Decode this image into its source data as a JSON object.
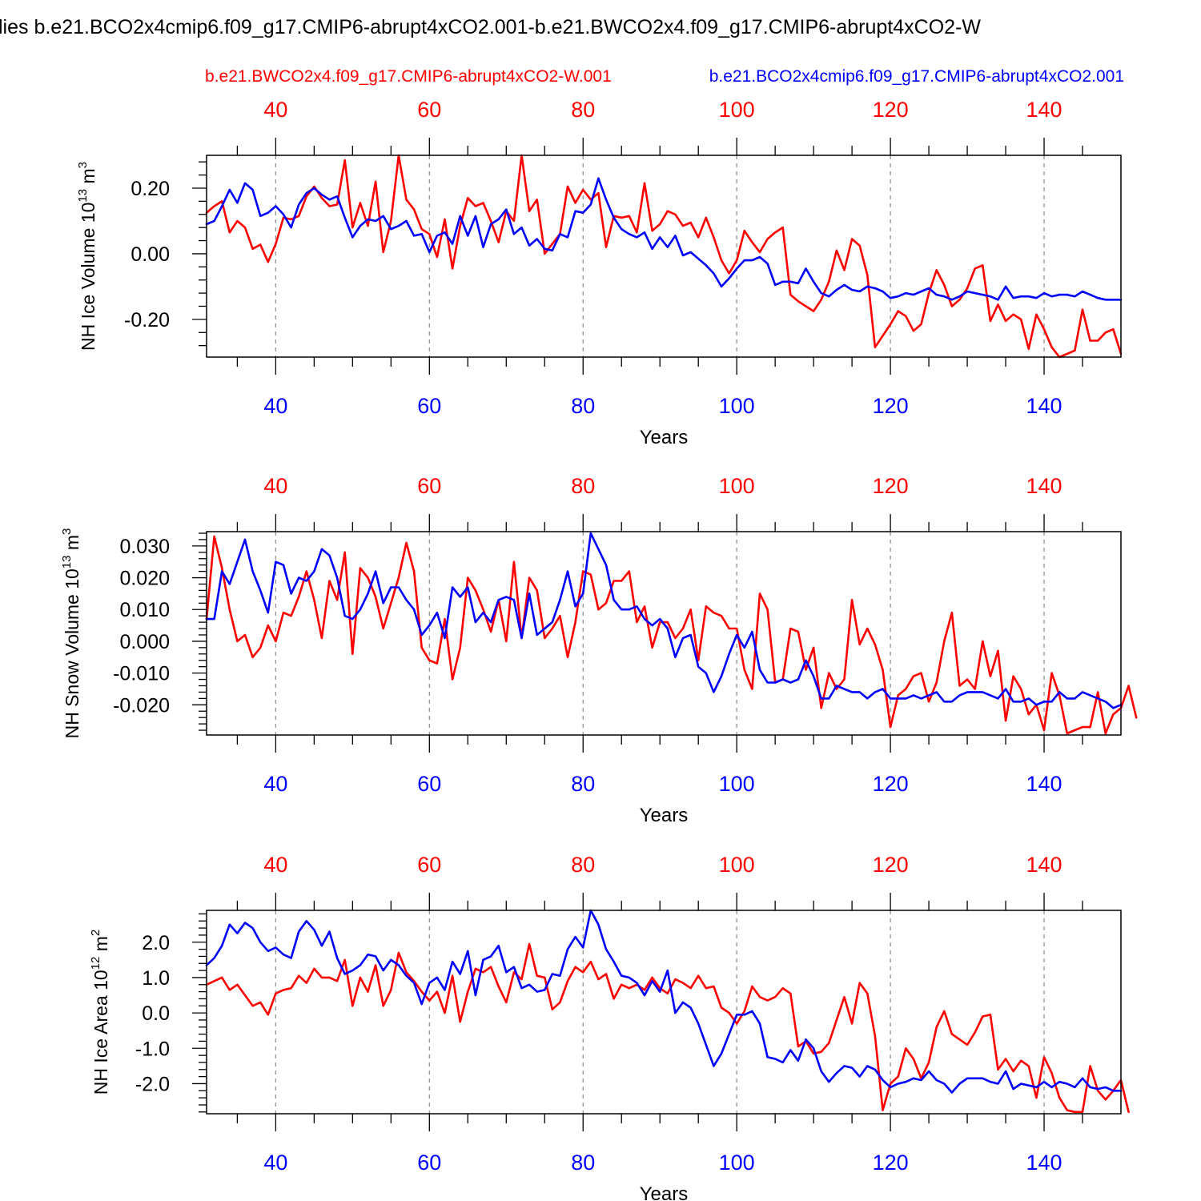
{
  "figure": {
    "title": "lies b.e21.BCO2x4cmip6.f09_g17.CMIP6-abrupt4xCO2.001-b.e21.BWCO2x4.f09_g17.CMIP6-abrupt4xCO2-W",
    "series_red_label": "b.e21.BWCO2x4.f09_g17.CMIP6-abrupt4xCO2-W.001",
    "series_blue_label": "b.e21.BCO2x4cmip6.f09_g17.CMIP6-abrupt4xCO2.001",
    "colors": {
      "red": "#ff0000",
      "blue": "#0000ff",
      "axis": "#000000",
      "grid": "#888888"
    }
  },
  "chart_data": [
    {
      "type": "line",
      "panel": "ice-volume",
      "ylabel_main": "NH Ice Volume 10",
      "ylabel_exp": "13",
      "ylabel_unit": " m",
      "ylabel_unit_exp": "3",
      "xlabel": "Years",
      "xlim": [
        31,
        150
      ],
      "ylim": [
        -0.315,
        0.3
      ],
      "yticks": [
        0.2,
        0.0,
        -0.2
      ],
      "ytick_labels": [
        "0.20",
        "0.00",
        "-0.20"
      ],
      "yminor_step": 0.04,
      "xticks": [
        40,
        60,
        80,
        100,
        120,
        140
      ],
      "xtick_labels": [
        "40",
        "60",
        "80",
        "100",
        "120",
        "140"
      ],
      "x_start": 31,
      "series": [
        {
          "name": "b.e21.BWCO2x4.f09_g17.CMIP6-abrupt4xCO2-W.001",
          "color": "#ff0000",
          "values": [
            0.125,
            0.145,
            0.16,
            0.065,
            0.1,
            0.08,
            0.015,
            0.028,
            -0.025,
            0.03,
            0.11,
            0.105,
            0.115,
            0.175,
            0.205,
            0.17,
            0.145,
            0.15,
            0.285,
            0.08,
            0.155,
            0.085,
            0.22,
            0.005,
            0.1,
            0.3,
            0.165,
            0.135,
            0.075,
            0.06,
            -0.01,
            0.105,
            -0.045,
            0.085,
            0.17,
            0.145,
            0.155,
            0.1,
            0.035,
            0.13,
            0.1,
            0.3,
            0.13,
            0.165,
            0.0,
            0.03,
            0.06,
            0.205,
            0.155,
            0.195,
            0.165,
            0.185,
            0.02,
            0.115,
            0.11,
            0.115,
            0.065,
            0.215,
            0.07,
            0.09,
            0.13,
            0.12,
            0.085,
            0.095,
            0.05,
            0.11,
            0.05,
            -0.02,
            -0.06,
            -0.02,
            0.07,
            0.035,
            0.005,
            0.045,
            0.065,
            0.08,
            -0.125,
            -0.145,
            -0.16,
            -0.175,
            -0.14,
            -0.085,
            0.01,
            -0.05,
            0.045,
            0.025,
            -0.065,
            -0.285,
            -0.25,
            -0.215,
            -0.175,
            -0.19,
            -0.235,
            -0.215,
            -0.12,
            -0.05,
            -0.095,
            -0.16,
            -0.14,
            -0.105,
            -0.045,
            -0.035,
            -0.205,
            -0.155,
            -0.205,
            -0.185,
            -0.2,
            -0.29,
            -0.185,
            -0.23,
            -0.285,
            -0.315,
            -0.305,
            -0.295,
            -0.17,
            -0.265,
            -0.265,
            -0.24,
            -0.23,
            -0.305
          ]
        },
        {
          "name": "b.e21.BCO2x4cmip6.f09_g17.CMIP6-abrupt4xCO2.001",
          "color": "#0000ff",
          "values": [
            0.09,
            0.1,
            0.145,
            0.195,
            0.155,
            0.215,
            0.195,
            0.115,
            0.125,
            0.145,
            0.12,
            0.08,
            0.15,
            0.185,
            0.2,
            0.18,
            0.165,
            0.175,
            0.11,
            0.05,
            0.085,
            0.105,
            0.1,
            0.115,
            0.075,
            0.085,
            0.1,
            0.055,
            0.06,
            0.005,
            0.055,
            0.065,
            0.03,
            0.115,
            0.055,
            0.115,
            0.02,
            0.09,
            0.105,
            0.135,
            0.06,
            0.08,
            0.025,
            0.045,
            0.015,
            0.01,
            0.06,
            0.05,
            0.13,
            0.125,
            0.15,
            0.23,
            0.165,
            0.11,
            0.075,
            0.06,
            0.05,
            0.065,
            0.015,
            0.05,
            0.02,
            0.055,
            -0.005,
            0.005,
            -0.015,
            -0.035,
            -0.06,
            -0.1,
            -0.075,
            -0.045,
            -0.02,
            -0.02,
            -0.01,
            -0.03,
            -0.095,
            -0.085,
            -0.085,
            -0.09,
            -0.045,
            -0.085,
            -0.12,
            -0.13,
            -0.11,
            -0.095,
            -0.11,
            -0.115,
            -0.1,
            -0.105,
            -0.115,
            -0.135,
            -0.13,
            -0.12,
            -0.125,
            -0.115,
            -0.105,
            -0.125,
            -0.13,
            -0.14,
            -0.13,
            -0.115,
            -0.12,
            -0.125,
            -0.13,
            -0.14,
            -0.1,
            -0.135,
            -0.13,
            -0.13,
            -0.135,
            -0.12,
            -0.13,
            -0.125,
            -0.125,
            -0.13,
            -0.115,
            -0.125,
            -0.135,
            -0.14,
            -0.14,
            -0.14
          ]
        }
      ]
    },
    {
      "type": "line",
      "panel": "snow-volume",
      "ylabel_main": "NH Snow Volume 10",
      "ylabel_exp": "13",
      "ylabel_unit": " m",
      "ylabel_unit_exp": "3",
      "xlabel": "Years",
      "xlim": [
        31,
        150
      ],
      "ylim": [
        -0.0295,
        0.0345
      ],
      "yticks": [
        0.03,
        0.02,
        0.01,
        0.0,
        -0.01,
        -0.02
      ],
      "ytick_labels": [
        "0.030",
        "0.020",
        "0.010",
        "0.000",
        "-0.010",
        "-0.020"
      ],
      "yminor_step": 0.002,
      "xticks": [
        40,
        60,
        80,
        100,
        120,
        140
      ],
      "xtick_labels": [
        "40",
        "60",
        "80",
        "100",
        "120",
        "140"
      ],
      "x_start": 31,
      "series": [
        {
          "name": "b.e21.BWCO2x4.f09_g17.CMIP6-abrupt4xCO2-W.001",
          "color": "#ff0000",
          "values": [
            0.007,
            0.033,
            0.023,
            0.01,
            0.0,
            0.002,
            -0.005,
            -0.002,
            0.005,
            0.0,
            0.009,
            0.008,
            0.014,
            0.022,
            0.013,
            0.001,
            0.019,
            0.013,
            0.028,
            -0.004,
            0.023,
            0.02,
            0.014,
            0.004,
            0.012,
            0.02,
            0.031,
            0.022,
            -0.002,
            -0.006,
            -0.007,
            0.007,
            -0.012,
            -0.002,
            0.02,
            0.016,
            0.01,
            0.003,
            0.013,
            0.0,
            0.025,
            0.001,
            0.02,
            0.016,
            0.001,
            0.004,
            0.008,
            -0.005,
            0.006,
            0.022,
            0.021,
            0.01,
            0.012,
            0.019,
            0.019,
            0.022,
            0.006,
            0.011,
            -0.002,
            0.006,
            0.006,
            0.001,
            0.004,
            0.01,
            -0.006,
            0.011,
            0.009,
            0.008,
            0.004,
            0.004,
            -0.009,
            -0.015,
            0.015,
            0.01,
            -0.013,
            -0.012,
            0.004,
            0.003,
            -0.009,
            -0.002,
            -0.021,
            -0.01,
            -0.015,
            -0.012,
            0.013,
            -0.001,
            0.004,
            -0.001,
            -0.009,
            -0.027,
            -0.017,
            -0.015,
            -0.011,
            -0.01,
            -0.019,
            -0.013,
            0.0,
            0.009,
            -0.014,
            -0.012,
            -0.015,
            0.0,
            -0.011,
            -0.003,
            -0.025,
            -0.011,
            -0.015,
            -0.023,
            -0.02,
            -0.028,
            -0.01,
            -0.017,
            -0.029,
            -0.028,
            -0.027,
            -0.027,
            -0.016,
            -0.029,
            -0.023,
            -0.021,
            -0.014,
            -0.024
          ]
        },
        {
          "name": "b.e21.BCO2x4cmip6.f09_g17.CMIP6-abrupt4xCO2.001",
          "color": "#0000ff",
          "values": [
            0.007,
            0.007,
            0.022,
            0.018,
            0.025,
            0.032,
            0.022,
            0.016,
            0.009,
            0.025,
            0.024,
            0.015,
            0.02,
            0.019,
            0.022,
            0.029,
            0.027,
            0.02,
            0.008,
            0.007,
            0.01,
            0.015,
            0.022,
            0.012,
            0.017,
            0.017,
            0.013,
            0.01,
            0.002,
            0.005,
            0.009,
            0.001,
            0.017,
            0.014,
            0.017,
            0.006,
            0.009,
            0.006,
            0.013,
            0.014,
            0.013,
            0.001,
            0.015,
            0.002,
            0.004,
            0.006,
            0.013,
            0.022,
            0.011,
            0.015,
            0.034,
            0.029,
            0.024,
            0.013,
            0.01,
            0.01,
            0.011,
            0.007,
            0.005,
            0.007,
            0.004,
            -0.005,
            0.001,
            0.002,
            -0.008,
            -0.01,
            -0.016,
            -0.011,
            -0.004,
            0.002,
            -0.002,
            0.003,
            -0.009,
            -0.013,
            -0.013,
            -0.012,
            -0.013,
            -0.012,
            -0.006,
            -0.011,
            -0.018,
            -0.018,
            -0.014,
            -0.015,
            -0.016,
            -0.016,
            -0.018,
            -0.016,
            -0.015,
            -0.018,
            -0.018,
            -0.018,
            -0.017,
            -0.018,
            -0.017,
            -0.016,
            -0.019,
            -0.019,
            -0.017,
            -0.016,
            -0.016,
            -0.016,
            -0.017,
            -0.018,
            -0.015,
            -0.019,
            -0.019,
            -0.018,
            -0.02,
            -0.019,
            -0.019,
            -0.016,
            -0.018,
            -0.018,
            -0.016,
            -0.017,
            -0.018,
            -0.019,
            -0.021,
            -0.02
          ]
        }
      ]
    },
    {
      "type": "line",
      "panel": "ice-area",
      "ylabel_main": "NH Ice Area 10",
      "ylabel_exp": "12",
      "ylabel_unit": " m",
      "ylabel_unit_exp": "2",
      "xlabel": "Years",
      "xlim": [
        31,
        150
      ],
      "ylim": [
        -2.85,
        2.9
      ],
      "yticks": [
        2.0,
        1.0,
        0.0,
        -1.0,
        -2.0
      ],
      "ytick_labels": [
        "2.0",
        "1.0",
        "0.0",
        "-1.0",
        "-2.0"
      ],
      "yminor_step": 0.2,
      "xticks": [
        40,
        60,
        80,
        100,
        120,
        140
      ],
      "xtick_labels": [
        "40",
        "60",
        "80",
        "100",
        "120",
        "140"
      ],
      "x_start": 31,
      "series": [
        {
          "name": "b.e21.BWCO2x4.f09_g17.CMIP6-abrupt4xCO2-W.001",
          "color": "#ff0000",
          "values": [
            0.8,
            0.9,
            1.0,
            0.65,
            0.8,
            0.5,
            0.2,
            0.3,
            -0.05,
            0.55,
            0.65,
            0.7,
            1.05,
            0.85,
            1.25,
            1.0,
            1.0,
            0.9,
            1.5,
            0.2,
            1.0,
            0.6,
            1.35,
            0.2,
            0.65,
            1.7,
            1.15,
            0.9,
            0.6,
            0.35,
            0.6,
            0.0,
            1.05,
            -0.25,
            0.6,
            1.25,
            1.15,
            1.3,
            0.75,
            0.3,
            1.15,
            0.95,
            1.95,
            1.05,
            1.0,
            0.1,
            0.3,
            0.9,
            1.3,
            1.15,
            1.45,
            0.95,
            1.1,
            0.4,
            0.8,
            0.7,
            0.8,
            0.65,
            1.0,
            0.7,
            0.55,
            0.95,
            0.85,
            0.7,
            1.05,
            0.7,
            0.75,
            0.15,
            0.0,
            -0.3,
            0.05,
            0.75,
            0.45,
            0.35,
            0.45,
            0.7,
            0.55,
            -0.95,
            -0.8,
            -1.15,
            -1.1,
            -0.85,
            -0.2,
            0.45,
            -0.3,
            0.85,
            0.55,
            -0.65,
            -2.75,
            -2.0,
            -1.8,
            -1.0,
            -1.3,
            -1.85,
            -1.4,
            -0.4,
            0.05,
            -0.6,
            -0.75,
            -0.9,
            -0.55,
            -0.1,
            -0.05,
            -1.6,
            -1.3,
            -1.65,
            -1.35,
            -1.5,
            -2.4,
            -1.25,
            -1.7,
            -2.4,
            -2.75,
            -2.8,
            -2.8,
            -1.5,
            -2.2,
            -2.45,
            -2.2,
            -1.9,
            -2.8
          ]
        },
        {
          "name": "b.e21.BCO2x4cmip6.f09_g17.CMIP6-abrupt4xCO2.001",
          "color": "#0000ff",
          "values": [
            1.35,
            1.55,
            1.9,
            2.5,
            2.25,
            2.55,
            2.4,
            2.0,
            1.75,
            1.85,
            1.65,
            1.55,
            2.3,
            2.6,
            2.35,
            1.9,
            2.3,
            1.55,
            1.1,
            1.2,
            1.35,
            1.65,
            1.6,
            1.2,
            1.5,
            1.35,
            1.05,
            0.85,
            0.25,
            0.85,
            1.0,
            0.65,
            1.45,
            1.1,
            1.75,
            0.5,
            1.5,
            1.6,
            1.9,
            1.15,
            1.3,
            0.7,
            0.8,
            0.6,
            0.65,
            1.1,
            1.05,
            1.8,
            2.15,
            1.85,
            2.9,
            2.5,
            1.8,
            1.45,
            1.05,
            1.0,
            0.85,
            0.5,
            0.9,
            0.6,
            1.2,
            0.0,
            0.3,
            0.15,
            -0.3,
            -0.9,
            -1.5,
            -1.15,
            -0.6,
            -0.05,
            -0.05,
            0.05,
            -0.3,
            -1.25,
            -1.3,
            -1.4,
            -1.05,
            -1.35,
            -0.75,
            -1.0,
            -1.65,
            -1.95,
            -1.7,
            -1.5,
            -1.55,
            -1.8,
            -1.5,
            -1.6,
            -1.9,
            -2.1,
            -2.0,
            -1.95,
            -1.85,
            -1.9,
            -1.65,
            -1.9,
            -2.0,
            -2.25,
            -2.0,
            -1.85,
            -1.85,
            -1.85,
            -1.95,
            -2.0,
            -1.65,
            -2.15,
            -2.0,
            -2.05,
            -2.1,
            -1.95,
            -2.1,
            -1.95,
            -2.0,
            -2.1,
            -1.85,
            -2.1,
            -2.15,
            -2.1,
            -2.2,
            -2.2
          ]
        }
      ]
    }
  ]
}
